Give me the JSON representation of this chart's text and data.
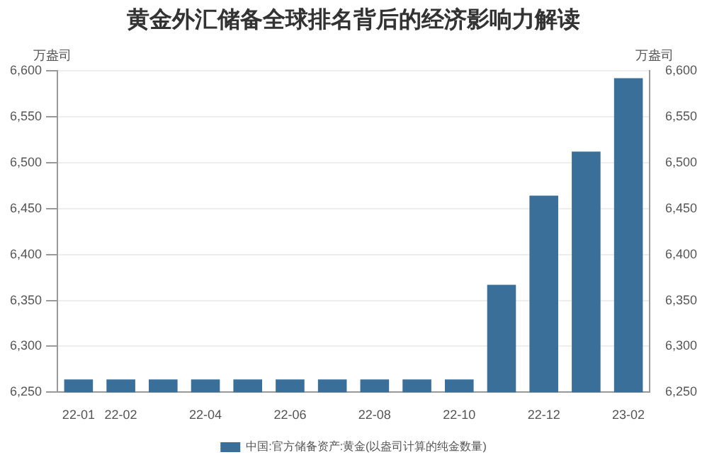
{
  "chart_data": {
    "type": "bar",
    "title": "黄金外汇储备全球排名背后的经济影响力解读",
    "ylabel": "万盎司",
    "y2label": "万盎司",
    "categories": [
      "22-01",
      "22-02",
      null,
      "22-04",
      null,
      "22-06",
      null,
      "22-08",
      null,
      "22-10",
      null,
      "22-12",
      null,
      "23-02"
    ],
    "series": [
      {
        "name": "中国:官方储备资产:黄金(以盎司计算的纯金数量)",
        "color": "#3a6f9a",
        "values": [
          6264,
          6264,
          6264,
          6264,
          6264,
          6264,
          6264,
          6264,
          6264,
          6264,
          6367,
          6464,
          6512,
          6592
        ]
      }
    ],
    "ylim": [
      6250,
      6600
    ],
    "yticks": [
      {
        "value": 6250,
        "label": "6,250"
      },
      {
        "value": 6300,
        "label": "6,300"
      },
      {
        "value": 6350,
        "label": "6,350"
      },
      {
        "value": 6400,
        "label": "6,400"
      },
      {
        "value": 6450,
        "label": "6,450"
      },
      {
        "value": 6500,
        "label": "6,500"
      },
      {
        "value": 6550,
        "label": "6,550"
      },
      {
        "value": 6600,
        "label": "6,600"
      }
    ],
    "y2lim": [
      6250,
      6600
    ],
    "y2ticks": [
      {
        "value": 6250,
        "label": "6,250"
      },
      {
        "value": 6300,
        "label": "6,300"
      },
      {
        "value": 6350,
        "label": "6,350"
      },
      {
        "value": 6400,
        "label": "6,400"
      },
      {
        "value": 6450,
        "label": "6,450"
      },
      {
        "value": 6500,
        "label": "6,500"
      },
      {
        "value": 6550,
        "label": "6,550"
      },
      {
        "value": 6600,
        "label": "6,600"
      }
    ],
    "grid": "y",
    "legend": "bottom"
  }
}
